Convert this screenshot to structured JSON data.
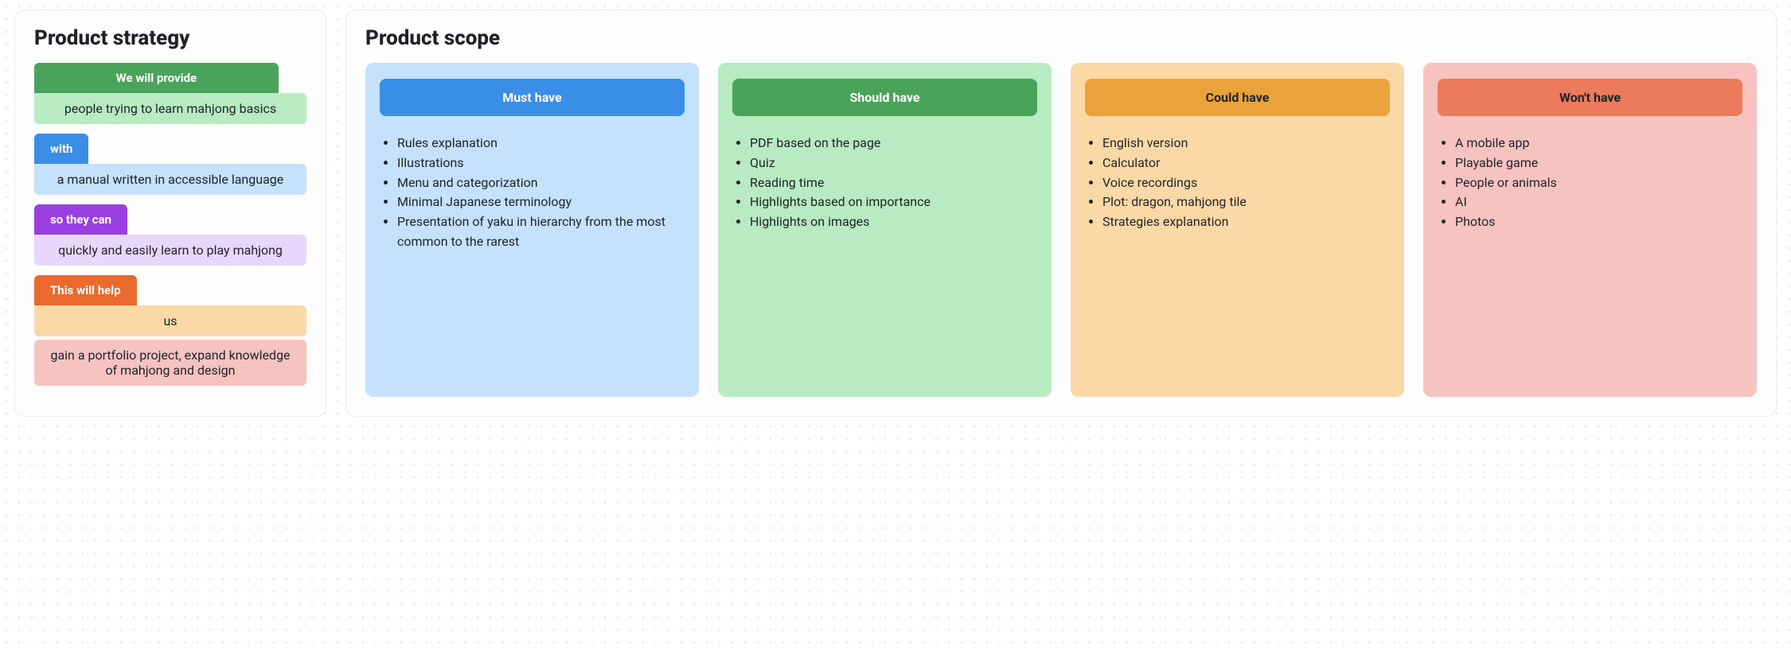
{
  "strategy": {
    "title": "Product strategy",
    "rows": [
      {
        "tag": "We will provide",
        "tag_bg": "#4aa35a",
        "tag_full": true,
        "detail": "people trying to learn mahjong basics",
        "detail_bg": "#b8ebc2"
      },
      {
        "tag": "with",
        "tag_bg": "#3b8ee6",
        "tag_full": false,
        "detail": "a manual written in accessible language",
        "detail_bg": "#c5e1fb"
      },
      {
        "tag": "so they can",
        "tag_bg": "#9a3ee0",
        "tag_full": false,
        "detail": "quickly and easily learn to play mahjong",
        "detail_bg": "#e9d6fb"
      },
      {
        "tag": "This will help",
        "tag_bg": "#ea6a2e",
        "tag_full": false,
        "detail": "us",
        "detail_bg": "#fbd9a7",
        "detail2": "gain a portfolio project, expand knowledge of mahjong and design",
        "detail2_bg": "#f7c3c1"
      }
    ]
  },
  "scope": {
    "title": "Product scope",
    "columns": [
      {
        "title": "Must have",
        "col_bg": "#c5e1fb",
        "header_bg": "#3b8ee6",
        "header_color": "#ffffff",
        "items": [
          "Rules explanation",
          "Illustrations",
          "Menu and categorization",
          "Minimal Japanese terminology",
          "Presentation of yaku in hierarchy from the most common to the rarest"
        ]
      },
      {
        "title": "Should have",
        "col_bg": "#b8ebc2",
        "header_bg": "#4aa35a",
        "header_color": "#ffffff",
        "items": [
          "PDF based on the page",
          "Quiz",
          "Reading time",
          "Highlights based on importance",
          "Highlights on images"
        ]
      },
      {
        "title": "Could have",
        "col_bg": "#fbd9a7",
        "header_bg": "#e9a33a",
        "header_color": "#1f2328",
        "items": [
          "English version",
          "Calculator",
          "Voice recordings",
          "Plot: dragon, mahjong tile",
          "Strategies explanation"
        ]
      },
      {
        "title": "Won't have",
        "col_bg": "#f7c3c1",
        "header_bg": "#ec7a5c",
        "header_color": "#1f2328",
        "items": [
          "A mobile app",
          "Playable game",
          "People or animals",
          "AI",
          "Photos"
        ]
      }
    ]
  }
}
